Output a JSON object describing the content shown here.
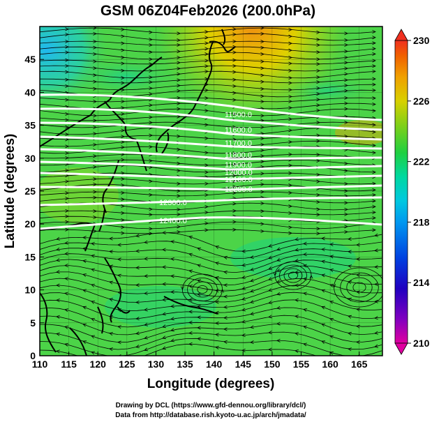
{
  "title": "GSM 06Z04Feb2026 (200.0hPa)",
  "xlabel": "Longitude (degrees)",
  "ylabel": "Latitude  (degrees)",
  "credits": [
    "Drawing by DCL (https://www.gfd-dennou.org/library/dcl/)",
    "Data from http://database.rish.kyoto-u.ac.jp/arch/jmadata/"
  ],
  "x_ticks": [
    "110",
    "115",
    "120",
    "125",
    "130",
    "135",
    "140",
    "145",
    "150",
    "155",
    "160",
    "165"
  ],
  "y_ticks": [
    "0",
    "5",
    "10",
    "15",
    "20",
    "25",
    "30",
    "35",
    "40",
    "45"
  ],
  "colorbar": {
    "ticks": [
      "230",
      "226",
      "222",
      "218",
      "214",
      "210"
    ],
    "colors": [
      "#e000a0",
      "#8000c0",
      "#2000c0",
      "#0040e0",
      "#0090f0",
      "#00c8e0",
      "#00d8a0",
      "#20d040",
      "#60d020",
      "#a0d810",
      "#e0d000",
      "#f0a000",
      "#f06000",
      "#f03020"
    ]
  },
  "contour_labels": [
    "11500.0",
    "11600.0",
    "11700.0",
    "11800.0",
    "11900.0",
    "12000.0",
    "12100.0",
    "12200.0",
    "12300.0",
    "12400.0"
  ]
}
